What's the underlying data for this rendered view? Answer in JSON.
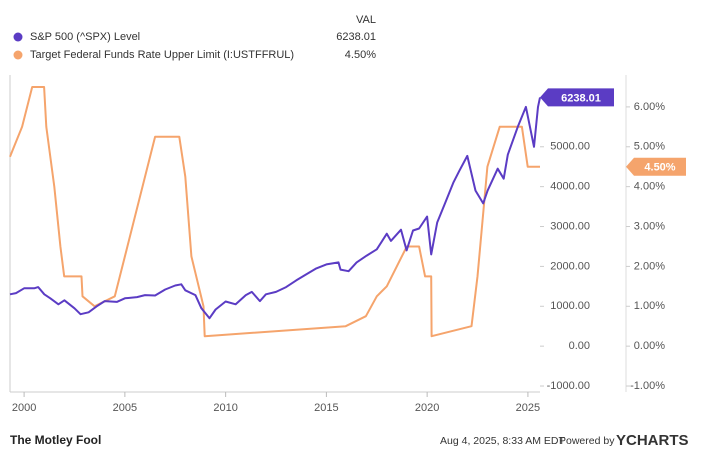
{
  "chart_data": {
    "type": "line",
    "legend_header": "VAL",
    "xlim": [
      1999.3,
      2025.6
    ],
    "xticks": [
      2000,
      2005,
      2010,
      2015,
      2020,
      2025
    ],
    "ylim": [
      -1150,
      6800
    ],
    "yticks": [
      {
        "value": -1000,
        "label": "-1000.00"
      },
      {
        "value": 0,
        "label": "0.00"
      },
      {
        "value": 1000,
        "label": "1000.00"
      },
      {
        "value": 2000,
        "label": "2000.00"
      },
      {
        "value": 3000,
        "label": "3000.00"
      },
      {
        "value": 4000,
        "label": "4000.00"
      },
      {
        "value": 5000,
        "label": "5000.00"
      }
    ],
    "y2lim": [
      -1.15,
      6.8
    ],
    "y2ticks": [
      {
        "value": -1,
        "label": "-1.00%"
      },
      {
        "value": 0,
        "label": "0.00%"
      },
      {
        "value": 1,
        "label": "1.00%"
      },
      {
        "value": 2,
        "label": "2.00%"
      },
      {
        "value": 3,
        "label": "3.00%"
      },
      {
        "value": 4,
        "label": "4.00%"
      },
      {
        "value": 5,
        "label": "5.00%"
      },
      {
        "value": 6,
        "label": "6.00%"
      }
    ],
    "series": [
      {
        "name": "S&P 500 (^SPX) Level",
        "color": "#5b3cc4",
        "value_label": "6238.01",
        "x": [
          1999.3,
          1999.6,
          2000.0,
          2000.5,
          2000.7,
          2001.0,
          2001.3,
          2001.7,
          2002.0,
          2002.5,
          2002.8,
          2003.2,
          2003.6,
          2004.0,
          2004.6,
          2005.0,
          2005.6,
          2006.0,
          2006.5,
          2007.0,
          2007.5,
          2007.8,
          2008.0,
          2008.5,
          2008.8,
          2009.2,
          2009.5,
          2010.0,
          2010.5,
          2011.0,
          2011.3,
          2011.7,
          2012.0,
          2012.5,
          2013.0,
          2013.5,
          2014.0,
          2014.5,
          2015.0,
          2015.6,
          2015.7,
          2016.1,
          2016.5,
          2017.0,
          2017.5,
          2018.0,
          2018.2,
          2018.7,
          2018.98,
          2019.3,
          2019.6,
          2020.0,
          2020.2,
          2020.5,
          2020.9,
          2021.3,
          2021.6,
          2021.99,
          2022.4,
          2022.78,
          2023.0,
          2023.5,
          2023.8,
          2024.0,
          2024.5,
          2024.9,
          2025.3,
          2025.5,
          2025.6
        ],
        "values": [
          1300,
          1330,
          1450,
          1450,
          1480,
          1300,
          1200,
          1050,
          1150,
          950,
          800,
          850,
          1000,
          1130,
          1110,
          1200,
          1230,
          1280,
          1270,
          1420,
          1520,
          1550,
          1400,
          1280,
          950,
          700,
          920,
          1120,
          1050,
          1280,
          1360,
          1130,
          1300,
          1360,
          1480,
          1650,
          1800,
          1950,
          2050,
          2100,
          1920,
          1880,
          2100,
          2270,
          2430,
          2820,
          2640,
          2920,
          2400,
          2900,
          2950,
          3250,
          2300,
          3100,
          3600,
          4100,
          4400,
          4770,
          3900,
          3580,
          3900,
          4450,
          4200,
          4800,
          5500,
          6000,
          5000,
          6000,
          6238.01
        ]
      },
      {
        "name": "Target Federal Funds Rate Upper Limit (I:USTFFRUL)",
        "color": "#f5a46c",
        "axis": "y2",
        "value_label": "4.50%",
        "x": [
          1999.3,
          1999.5,
          1999.9,
          2000.4,
          2000.99,
          2001.1,
          2001.5,
          2001.8,
          2001.99,
          2002.85,
          2002.9,
          2003.5,
          2004.5,
          2005.0,
          2006.5,
          2007.7,
          2008.0,
          2008.3,
          2008.9,
          2008.96,
          2015.96,
          2016.96,
          2017.5,
          2018.0,
          2018.99,
          2019.6,
          2019.9,
          2020.2,
          2020.22,
          2022.2,
          2022.5,
          2022.99,
          2023.6,
          2024.7,
          2024.99,
          2025.6
        ],
        "values": [
          4.75,
          5.0,
          5.5,
          6.5,
          6.5,
          5.5,
          4.0,
          2.5,
          1.75,
          1.75,
          1.25,
          1.0,
          1.25,
          2.25,
          5.25,
          5.25,
          4.25,
          2.25,
          1.0,
          0.25,
          0.5,
          0.75,
          1.25,
          1.5,
          2.5,
          2.5,
          1.75,
          1.75,
          0.25,
          0.5,
          1.75,
          4.5,
          5.5,
          5.5,
          4.5,
          4.5
        ]
      }
    ],
    "source": "The Motley Fool",
    "timestamp": "Aug 4, 2025, 8:33 AM EDT",
    "powered_by": "Powered by",
    "brand": "YCHARTS"
  }
}
